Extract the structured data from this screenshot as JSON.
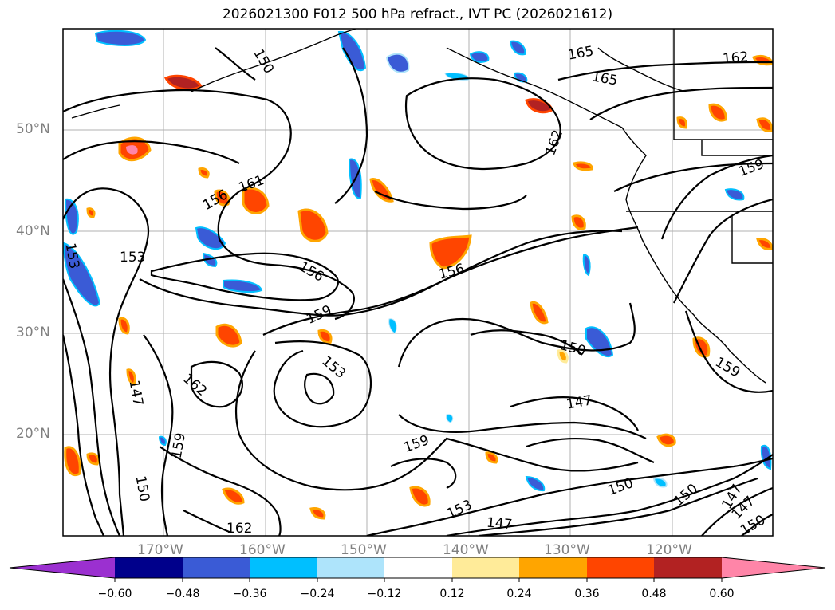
{
  "title": "2026021300 F012 500 hPa refract., IVT PC (2026021612)",
  "lat_labels": [
    "50°N",
    "40°N",
    "30°N",
    "20°N"
  ],
  "lon_labels": [
    "170°W",
    "160°W",
    "150°W",
    "140°W",
    "130°W",
    "120°W"
  ],
  "contour_labels": [
    "150",
    "165",
    "165",
    "162",
    "162",
    "159",
    "153",
    "156",
    "156",
    "161",
    "153",
    "156",
    "159",
    "156",
    "150",
    "153",
    "162",
    "147",
    "147",
    "159",
    "159",
    "150",
    "150",
    "153",
    "147",
    "147",
    "147",
    "150",
    "150",
    "162",
    "159"
  ],
  "colorbar": {
    "ticks": [
      "−0.60",
      "−0.48",
      "−0.36",
      "−0.24",
      "−0.12",
      "0.12",
      "0.24",
      "0.36",
      "0.48",
      "0.60"
    ],
    "colors": [
      "#9b30d0",
      "#00008b",
      "#3a5bd6",
      "#00bfff",
      "#aee4fb",
      "#ffffff",
      "#ffeb99",
      "#ffa500",
      "#ff4500",
      "#b22222",
      "#ff85a8"
    ]
  }
}
